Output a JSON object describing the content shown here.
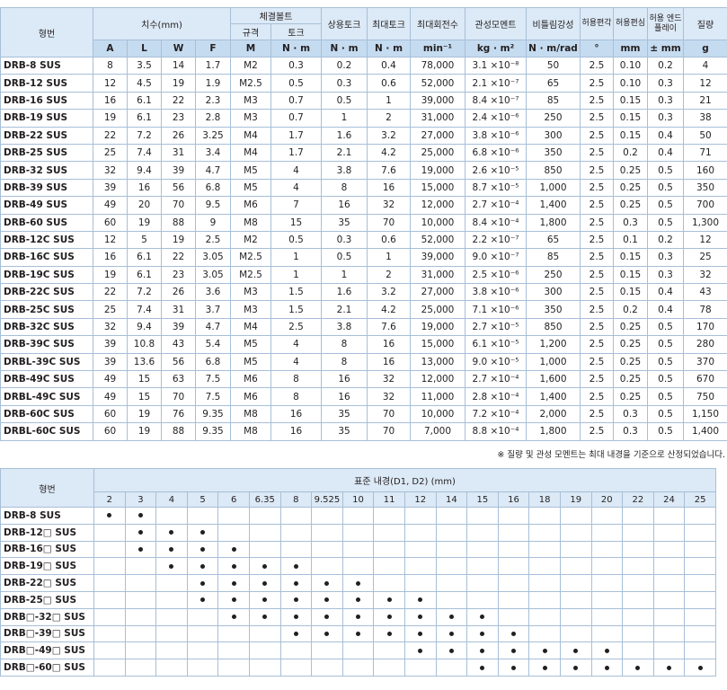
{
  "table1": {
    "header": {
      "model": "형번",
      "dimensions": "치수(mm)",
      "bolt": "체결볼트",
      "bolt_size": "규격",
      "bolt_torque": "토크",
      "rated_torque": "상용토크",
      "max_torque": "최대토크",
      "max_speed": "최대회전수",
      "inertia": "관성모멘트",
      "stiffness": "비틀림강성",
      "angular": "허용편각",
      "parallel": "허용편심",
      "end_play": "허용 엔드플레이",
      "mass": "질량"
    },
    "units": [
      "A",
      "L",
      "W",
      "F",
      "M",
      "N · m",
      "N · m",
      "N · m",
      "min⁻¹",
      "kg · m²",
      "N · m/rad",
      "°",
      "mm",
      "± mm",
      "g"
    ],
    "rows": [
      [
        "DRB-8 SUS",
        "8",
        "3.5",
        "14",
        "1.7",
        "M2",
        "0.3",
        "0.2",
        "0.4",
        "78,000",
        "3.1 ×10⁻⁸",
        "50",
        "2.5",
        "0.10",
        "0.2",
        "4"
      ],
      [
        "DRB-12 SUS",
        "12",
        "4.5",
        "19",
        "1.9",
        "M2.5",
        "0.5",
        "0.3",
        "0.6",
        "52,000",
        "2.1 ×10⁻⁷",
        "65",
        "2.5",
        "0.10",
        "0.3",
        "12"
      ],
      [
        "DRB-16 SUS",
        "16",
        "6.1",
        "22",
        "2.3",
        "M3",
        "0.7",
        "0.5",
        "1",
        "39,000",
        "8.4 ×10⁻⁷",
        "85",
        "2.5",
        "0.15",
        "0.3",
        "21"
      ],
      [
        "DRB-19 SUS",
        "19",
        "6.1",
        "23",
        "2.8",
        "M3",
        "0.7",
        "1",
        "2",
        "31,000",
        "2.4 ×10⁻⁶",
        "250",
        "2.5",
        "0.15",
        "0.3",
        "38"
      ],
      [
        "DRB-22 SUS",
        "22",
        "7.2",
        "26",
        "3.25",
        "M4",
        "1.7",
        "1.6",
        "3.2",
        "27,000",
        "3.8 ×10⁻⁶",
        "300",
        "2.5",
        "0.15",
        "0.4",
        "50"
      ],
      [
        "DRB-25 SUS",
        "25",
        "7.4",
        "31",
        "3.4",
        "M4",
        "1.7",
        "2.1",
        "4.2",
        "25,000",
        "6.8 ×10⁻⁶",
        "350",
        "2.5",
        "0.2",
        "0.4",
        "71"
      ],
      [
        "DRB-32 SUS",
        "32",
        "9.4",
        "39",
        "4.7",
        "M5",
        "4",
        "3.8",
        "7.6",
        "19,000",
        "2.6 ×10⁻⁵",
        "850",
        "2.5",
        "0.25",
        "0.5",
        "160"
      ],
      [
        "DRB-39 SUS",
        "39",
        "16",
        "56",
        "6.8",
        "M5",
        "4",
        "8",
        "16",
        "15,000",
        "8.7 ×10⁻⁵",
        "1,000",
        "2.5",
        "0.25",
        "0.5",
        "350"
      ],
      [
        "DRB-49 SUS",
        "49",
        "20",
        "70",
        "9.5",
        "M6",
        "7",
        "16",
        "32",
        "12,000",
        "2.7 ×10⁻⁴",
        "1,400",
        "2.5",
        "0.25",
        "0.5",
        "700"
      ],
      [
        "DRB-60 SUS",
        "60",
        "19",
        "88",
        "9",
        "M8",
        "15",
        "35",
        "70",
        "10,000",
        "8.4 ×10⁻⁴",
        "1,800",
        "2.5",
        "0.3",
        "0.5",
        "1,300"
      ],
      [
        "DRB-12C SUS",
        "12",
        "5",
        "19",
        "2.5",
        "M2",
        "0.5",
        "0.3",
        "0.6",
        "52,000",
        "2.2 ×10⁻⁷",
        "65",
        "2.5",
        "0.1",
        "0.2",
        "12"
      ],
      [
        "DRB-16C SUS",
        "16",
        "6.1",
        "22",
        "3.05",
        "M2.5",
        "1",
        "0.5",
        "1",
        "39,000",
        "9.0 ×10⁻⁷",
        "85",
        "2.5",
        "0.15",
        "0.3",
        "25"
      ],
      [
        "DRB-19C SUS",
        "19",
        "6.1",
        "23",
        "3.05",
        "M2.5",
        "1",
        "1",
        "2",
        "31,000",
        "2.5 ×10⁻⁶",
        "250",
        "2.5",
        "0.15",
        "0.3",
        "32"
      ],
      [
        "DRB-22C SUS",
        "22",
        "7.2",
        "26",
        "3.6",
        "M3",
        "1.5",
        "1.6",
        "3.2",
        "27,000",
        "3.8 ×10⁻⁶",
        "300",
        "2.5",
        "0.15",
        "0.4",
        "43"
      ],
      [
        "DRB-25C SUS",
        "25",
        "7.4",
        "31",
        "3.7",
        "M3",
        "1.5",
        "2.1",
        "4.2",
        "25,000",
        "7.1 ×10⁻⁶",
        "350",
        "2.5",
        "0.2",
        "0.4",
        "78"
      ],
      [
        "DRB-32C SUS",
        "32",
        "9.4",
        "39",
        "4.7",
        "M4",
        "2.5",
        "3.8",
        "7.6",
        "19,000",
        "2.7 ×10⁻⁵",
        "850",
        "2.5",
        "0.25",
        "0.5",
        "170"
      ],
      [
        "DRB-39C SUS",
        "39",
        "10.8",
        "43",
        "5.4",
        "M5",
        "4",
        "8",
        "16",
        "15,000",
        "6.1 ×10⁻⁵",
        "1,200",
        "2.5",
        "0.25",
        "0.5",
        "280"
      ],
      [
        "DRBL-39C SUS",
        "39",
        "13.6",
        "56",
        "6.8",
        "M5",
        "4",
        "8",
        "16",
        "13,000",
        "9.0 ×10⁻⁵",
        "1,000",
        "2.5",
        "0.25",
        "0.5",
        "370"
      ],
      [
        "DRB-49C SUS",
        "49",
        "15",
        "63",
        "7.5",
        "M6",
        "8",
        "16",
        "32",
        "12,000",
        "2.7 ×10⁻⁴",
        "1,600",
        "2.5",
        "0.25",
        "0.5",
        "670"
      ],
      [
        "DRBL-49C SUS",
        "49",
        "15",
        "70",
        "7.5",
        "M6",
        "8",
        "16",
        "32",
        "11,000",
        "2.8 ×10⁻⁴",
        "1,400",
        "2.5",
        "0.25",
        "0.5",
        "750"
      ],
      [
        "DRB-60C SUS",
        "60",
        "19",
        "76",
        "9.35",
        "M8",
        "16",
        "35",
        "70",
        "10,000",
        "7.2 ×10⁻⁴",
        "2,000",
        "2.5",
        "0.3",
        "0.5",
        "1,150"
      ],
      [
        "DRBL-60C SUS",
        "60",
        "19",
        "88",
        "9.35",
        "M8",
        "16",
        "35",
        "70",
        "7,000",
        "8.8 ×10⁻⁴",
        "1,800",
        "2.5",
        "0.3",
        "0.5",
        "1,400"
      ]
    ],
    "note": "※ 질량 및 관성 모멘트는 최대 내경을 기준으로 산정되었습니다."
  },
  "table2": {
    "header": {
      "model": "형번",
      "title": "표준 내경(D1, D2) (mm)"
    },
    "sizes": [
      2,
      3,
      4,
      5,
      6,
      6.35,
      8,
      9.525,
      10,
      11,
      12,
      14,
      15,
      16,
      18,
      19,
      20,
      22,
      24,
      25
    ],
    "rows": [
      {
        "model": "DRB-8 SUS",
        "bores": [
          2,
          3
        ]
      },
      {
        "model": "DRB-12□ SUS",
        "bores": [
          3,
          4,
          5
        ]
      },
      {
        "model": "DRB-16□ SUS",
        "bores": [
          3,
          4,
          5,
          6
        ]
      },
      {
        "model": "DRB-19□ SUS",
        "bores": [
          4,
          5,
          6,
          6.35,
          8
        ]
      },
      {
        "model": "DRB-22□ SUS",
        "bores": [
          5,
          6,
          6.35,
          8,
          9.525,
          10
        ]
      },
      {
        "model": "DRB-25□ SUS",
        "bores": [
          5,
          6,
          6.35,
          8,
          9.525,
          10,
          11,
          12
        ]
      },
      {
        "model": "DRB□-32□ SUS",
        "bores": [
          6,
          6.35,
          8,
          9.525,
          10,
          11,
          12,
          14,
          15
        ]
      },
      {
        "model": "DRB□-39□ SUS",
        "bores": [
          8,
          9.525,
          10,
          11,
          12,
          14,
          15,
          16
        ]
      },
      {
        "model": "DRB□-49□ SUS",
        "bores": [
          12,
          14,
          15,
          16,
          18,
          19,
          20
        ]
      },
      {
        "model": "DRB□-60□ SUS",
        "bores": [
          15,
          16,
          18,
          19,
          20,
          22,
          24,
          25
        ]
      }
    ]
  }
}
